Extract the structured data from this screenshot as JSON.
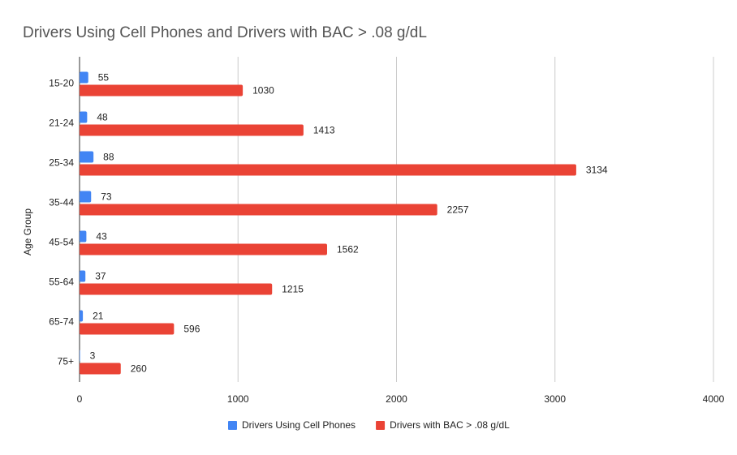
{
  "chart_data": {
    "type": "bar",
    "orientation": "horizontal",
    "title": "Drivers Using Cell Phones and Drivers with BAC > .08 g/dL",
    "ylabel": "Age Group",
    "categories": [
      "15-20",
      "21-24",
      "25-34",
      "35-44",
      "45-54",
      "55-64",
      "65-74",
      "75+"
    ],
    "series": [
      {
        "name": "Drivers Using Cell Phones",
        "color": "#4285f4",
        "values": [
          55,
          48,
          88,
          73,
          43,
          37,
          21,
          3
        ]
      },
      {
        "name": "Drivers with BAC > .08 g/dL",
        "color": "#ea4335",
        "values": [
          1030,
          1413,
          3134,
          2257,
          1562,
          1215,
          596,
          260
        ]
      }
    ],
    "xlim": [
      0,
      4000
    ],
    "xticks": [
      0,
      1000,
      2000,
      3000,
      4000
    ],
    "grid": true,
    "legend": "bottom",
    "data_labels": true
  }
}
